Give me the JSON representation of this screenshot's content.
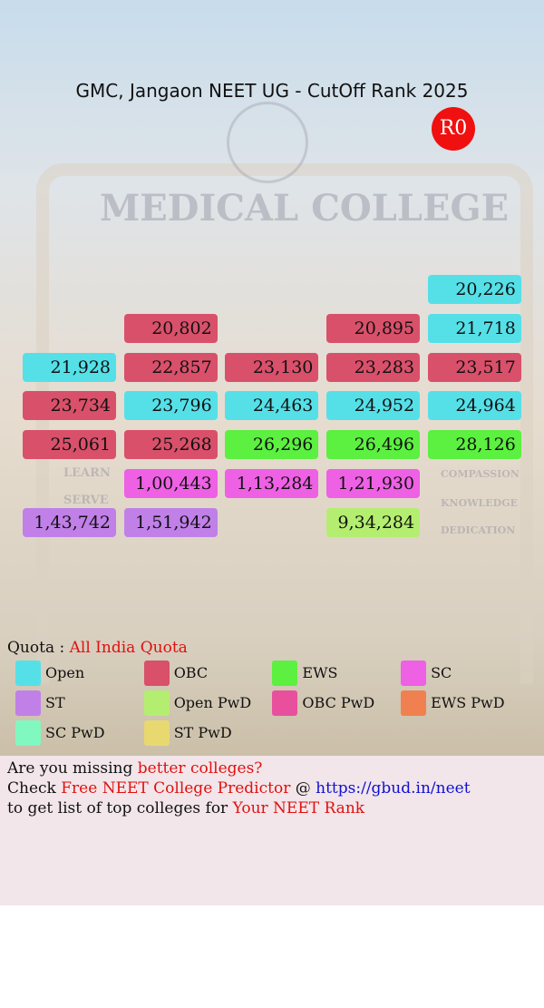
{
  "header": {
    "title": "GMC, Jangaon NEET UG - CutOff Rank 2025",
    "badge": "R0"
  },
  "background": {
    "signs": [
      "MEDICAL COLLEGE",
      "LEARN",
      "SERVE",
      "COMPASSION",
      "KNOWLEDGE",
      "DEDICATION"
    ]
  },
  "grid": {
    "rows": [
      [
        null,
        null,
        null,
        null,
        {
          "rank": "20,226",
          "color": "#55e0e8"
        }
      ],
      [
        null,
        {
          "rank": "20,802",
          "color": "#d9506a"
        },
        null,
        {
          "rank": "20,895",
          "color": "#d9506a"
        },
        {
          "rank": "21,718",
          "color": "#55e0e8"
        }
      ],
      [
        {
          "rank": "21,928",
          "color": "#55e0e8"
        },
        {
          "rank": "22,857",
          "color": "#d9506a"
        },
        {
          "rank": "23,130",
          "color": "#d9506a"
        },
        {
          "rank": "23,283",
          "color": "#d9506a"
        },
        {
          "rank": "23,517",
          "color": "#d9506a"
        }
      ],
      [
        {
          "rank": "23,734",
          "color": "#d9506a"
        },
        {
          "rank": "23,796",
          "color": "#55e0e8"
        },
        {
          "rank": "24,463",
          "color": "#55e0e8"
        },
        {
          "rank": "24,952",
          "color": "#55e0e8"
        },
        {
          "rank": "24,964",
          "color": "#55e0e8"
        }
      ],
      [
        {
          "rank": "25,061",
          "color": "#d9506a"
        },
        {
          "rank": "25,268",
          "color": "#d9506a"
        },
        {
          "rank": "26,296",
          "color": "#5cf040"
        },
        {
          "rank": "26,496",
          "color": "#5cf040"
        },
        {
          "rank": "28,126",
          "color": "#5cf040"
        }
      ],
      [
        null,
        {
          "rank": "1,00,443",
          "color": "#ee60e4"
        },
        {
          "rank": "1,13,284",
          "color": "#ee60e4"
        },
        {
          "rank": "1,21,930",
          "color": "#ee60e4"
        },
        null
      ],
      [
        {
          "rank": "1,43,742",
          "color": "#c080e8"
        },
        {
          "rank": "1,51,942",
          "color": "#c080e8"
        },
        null,
        {
          "rank": "9,34,284",
          "color": "#b4ee70"
        },
        null
      ]
    ]
  },
  "quota": {
    "label": "Quota :",
    "value": "All India Quota",
    "value_color": "#e01010"
  },
  "legend": [
    {
      "name": "Open",
      "color": "#55e0e8"
    },
    {
      "name": "OBC",
      "color": "#d9506a"
    },
    {
      "name": "EWS",
      "color": "#5cf040"
    },
    {
      "name": "SC",
      "color": "#ee60e4"
    },
    {
      "name": "ST",
      "color": "#c080e8"
    },
    {
      "name": "Open PwD",
      "color": "#b4ee70"
    },
    {
      "name": "OBC PwD",
      "color": "#e8509e"
    },
    {
      "name": "EWS PwD",
      "color": "#f08050"
    },
    {
      "name": "SC PwD",
      "color": "#80f8c0"
    },
    {
      "name": "ST PwD",
      "color": "#e8d870"
    }
  ],
  "footer": {
    "lines": [
      [
        {
          "text": "Are you missing",
          "color": "#111111"
        },
        {
          "text": "better colleges?",
          "color": "#e01010"
        }
      ],
      [
        {
          "text": "Check",
          "color": "#111111"
        },
        {
          "text": "Free NEET College Predictor",
          "color": "#e01010"
        },
        {
          "text": "@",
          "color": "#111111"
        },
        {
          "text": "https://gbud.in/neet",
          "color": "#1010d0"
        }
      ],
      [
        {
          "text": "to get list of top colleges for",
          "color": "#111111"
        },
        {
          "text": "Your NEET Rank",
          "color": "#e01010"
        }
      ]
    ]
  }
}
